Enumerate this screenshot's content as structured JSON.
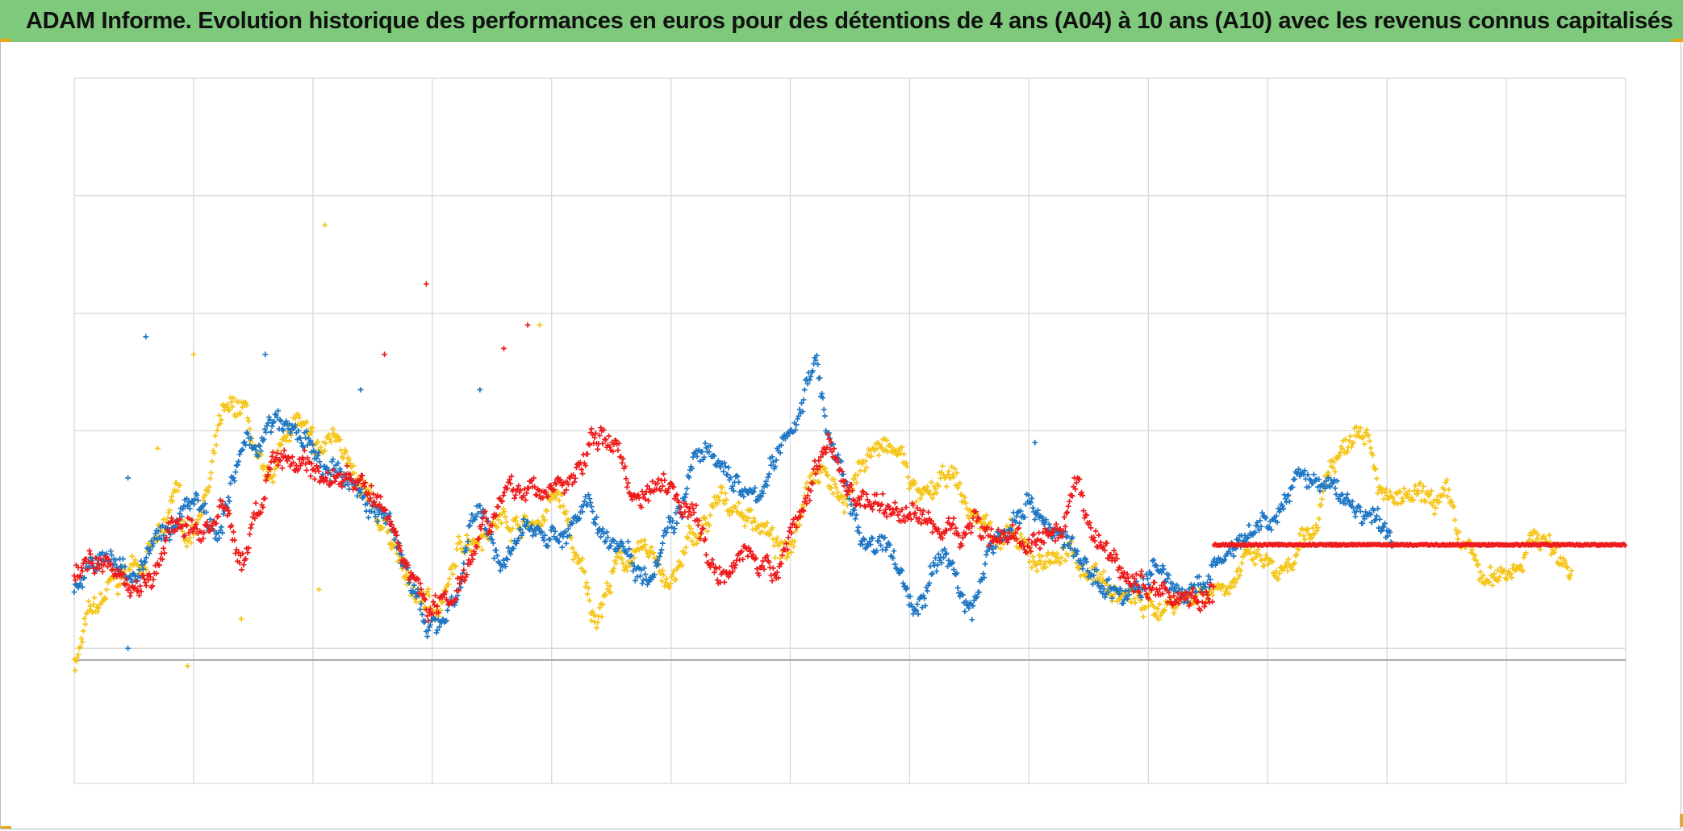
{
  "title": "ADAM Informe. Evolution historique des performances en euros pour des détentions de 4 ans (A04) à 10 ans (A10) avec les revenus connus capitalisés",
  "colors": {
    "title_bg": "#7fc97c",
    "corner_accent": "#e6a817",
    "grid": "#d9d9d9",
    "zero_line": "#a6a6a6",
    "series_blue": "#1f77c4",
    "series_red": "#ee1c1c",
    "series_yellow": "#f5c518"
  },
  "chart_data": {
    "type": "scatter",
    "title": "ADAM Informe. Evolution historique des performances en euros pour des détentions de 4 ans (A04) à 10 ans (A10) avec les revenus connus capitalisés",
    "xlabel": "",
    "ylabel": "",
    "marker": "plus",
    "grid": true,
    "x_range": [
      0,
      13
    ],
    "y_range": [
      -1.15,
      4.85
    ],
    "x_gridlines": [
      0,
      1,
      2,
      3,
      4,
      5,
      6,
      7,
      8,
      9,
      10,
      11,
      12,
      13
    ],
    "y_gridlines": [
      -1.15,
      0.0,
      1.85,
      2.85,
      3.85,
      4.85
    ],
    "baseline": -0.1,
    "series": [
      {
        "name": "blue",
        "color": "#1f77c4",
        "x_end": 11.05,
        "anchors": [
          [
            0.0,
            0.55
          ],
          [
            0.25,
            0.75
          ],
          [
            0.5,
            0.65
          ],
          [
            0.75,
            0.95
          ],
          [
            1.0,
            1.3
          ],
          [
            1.2,
            1.05
          ],
          [
            1.45,
            1.7
          ],
          [
            1.7,
            1.9
          ],
          [
            1.9,
            1.8
          ],
          [
            2.1,
            1.5
          ],
          [
            2.35,
            1.4
          ],
          [
            2.55,
            1.15
          ],
          [
            2.85,
            0.6
          ],
          [
            2.95,
            0.1
          ],
          [
            3.05,
            0.25
          ],
          [
            3.2,
            0.45
          ],
          [
            3.35,
            1.15
          ],
          [
            3.6,
            0.75
          ],
          [
            3.85,
            1.05
          ],
          [
            4.05,
            0.95
          ],
          [
            4.3,
            1.15
          ],
          [
            4.55,
            0.9
          ],
          [
            4.8,
            0.65
          ],
          [
            5.0,
            1.1
          ],
          [
            5.25,
            1.65
          ],
          [
            5.45,
            1.5
          ],
          [
            5.7,
            1.25
          ],
          [
            5.85,
            1.55
          ],
          [
            6.05,
            1.95
          ],
          [
            6.2,
            2.45
          ],
          [
            6.35,
            1.7
          ],
          [
            6.6,
            0.95
          ],
          [
            6.85,
            0.8
          ],
          [
            7.05,
            0.35
          ],
          [
            7.3,
            0.8
          ],
          [
            7.5,
            0.35
          ],
          [
            7.75,
            0.95
          ],
          [
            8.0,
            1.25
          ],
          [
            8.25,
            0.95
          ],
          [
            8.55,
            0.6
          ],
          [
            8.85,
            0.45
          ],
          [
            9.05,
            0.65
          ],
          [
            9.35,
            0.45
          ],
          [
            9.7,
            0.8
          ],
          [
            10.0,
            1.05
          ],
          [
            10.3,
            1.45
          ],
          [
            10.55,
            1.35
          ],
          [
            10.8,
            1.15
          ],
          [
            11.05,
            0.95
          ]
        ]
      },
      {
        "name": "red",
        "color": "#ee1c1c",
        "x_end": 9.55,
        "anchors": [
          [
            0.0,
            0.6
          ],
          [
            0.2,
            0.8
          ],
          [
            0.45,
            0.55
          ],
          [
            0.65,
            0.6
          ],
          [
            0.85,
            1.05
          ],
          [
            1.05,
            1.0
          ],
          [
            1.25,
            1.15
          ],
          [
            1.4,
            0.75
          ],
          [
            1.55,
            1.2
          ],
          [
            1.7,
            1.65
          ],
          [
            1.9,
            1.6
          ],
          [
            2.1,
            1.45
          ],
          [
            2.35,
            1.45
          ],
          [
            2.6,
            1.15
          ],
          [
            2.85,
            0.6
          ],
          [
            3.0,
            0.35
          ],
          [
            3.15,
            0.45
          ],
          [
            3.3,
            0.75
          ],
          [
            3.45,
            1.15
          ],
          [
            3.75,
            1.35
          ],
          [
            3.95,
            1.35
          ],
          [
            4.15,
            1.4
          ],
          [
            4.35,
            1.75
          ],
          [
            4.5,
            1.8
          ],
          [
            4.7,
            1.3
          ],
          [
            4.95,
            1.45
          ],
          [
            5.15,
            1.2
          ],
          [
            5.4,
            0.65
          ],
          [
            5.6,
            0.85
          ],
          [
            5.85,
            0.6
          ],
          [
            6.05,
            1.1
          ],
          [
            6.3,
            1.7
          ],
          [
            6.55,
            1.3
          ],
          [
            6.8,
            1.2
          ],
          [
            7.0,
            1.15
          ],
          [
            7.3,
            1.0
          ],
          [
            7.55,
            1.05
          ],
          [
            7.8,
            0.95
          ],
          [
            8.0,
            0.9
          ],
          [
            8.25,
            0.9
          ],
          [
            8.4,
            1.3
          ],
          [
            8.6,
            0.85
          ],
          [
            8.85,
            0.6
          ],
          [
            9.05,
            0.5
          ],
          [
            9.3,
            0.45
          ],
          [
            9.55,
            0.45
          ]
        ]
      },
      {
        "name": "red-flat",
        "color": "#ee1c1c",
        "x_start": 9.55,
        "x_end": 13.0,
        "flat_value": 0.88
      },
      {
        "name": "yellow",
        "color": "#f5c518",
        "x_end": 12.55,
        "anchors": [
          [
            0.0,
            -0.1
          ],
          [
            0.15,
            0.3
          ],
          [
            0.35,
            0.55
          ],
          [
            0.55,
            0.75
          ],
          [
            0.75,
            0.95
          ],
          [
            0.85,
            1.35
          ],
          [
            0.95,
            0.95
          ],
          [
            1.1,
            1.3
          ],
          [
            1.25,
            1.95
          ],
          [
            1.4,
            2.05
          ],
          [
            1.6,
            1.4
          ],
          [
            1.85,
            1.95
          ],
          [
            2.05,
            1.65
          ],
          [
            2.2,
            1.85
          ],
          [
            2.4,
            1.3
          ],
          [
            2.6,
            1.05
          ],
          [
            2.85,
            0.45
          ],
          [
            3.05,
            0.35
          ],
          [
            3.3,
            0.95
          ],
          [
            3.6,
            1.1
          ],
          [
            3.85,
            1.05
          ],
          [
            4.05,
            1.3
          ],
          [
            4.25,
            0.65
          ],
          [
            4.35,
            0.3
          ],
          [
            4.6,
            0.75
          ],
          [
            4.85,
            0.8
          ],
          [
            5.0,
            0.55
          ],
          [
            5.2,
            0.95
          ],
          [
            5.45,
            1.25
          ],
          [
            5.7,
            1.1
          ],
          [
            5.95,
            0.8
          ],
          [
            6.2,
            1.55
          ],
          [
            6.45,
            1.3
          ],
          [
            6.7,
            1.7
          ],
          [
            6.9,
            1.65
          ],
          [
            7.1,
            1.25
          ],
          [
            7.35,
            1.45
          ],
          [
            7.55,
            1.1
          ],
          [
            7.8,
            0.95
          ],
          [
            8.05,
            0.75
          ],
          [
            8.3,
            0.8
          ],
          [
            8.55,
            0.65
          ],
          [
            8.75,
            0.45
          ],
          [
            9.05,
            0.35
          ],
          [
            9.35,
            0.45
          ],
          [
            9.6,
            0.55
          ],
          [
            9.9,
            0.75
          ],
          [
            10.15,
            0.6
          ],
          [
            10.35,
            0.95
          ],
          [
            10.55,
            1.6
          ],
          [
            10.8,
            1.95
          ],
          [
            11.0,
            1.25
          ],
          [
            11.3,
            1.25
          ],
          [
            11.5,
            1.25
          ],
          [
            11.65,
            0.85
          ],
          [
            11.85,
            0.55
          ],
          [
            12.05,
            0.7
          ],
          [
            12.25,
            0.95
          ],
          [
            12.55,
            0.7
          ]
        ]
      }
    ],
    "outliers": {
      "blue": [
        [
          0.6,
          2.65
        ],
        [
          0.45,
          1.45
        ],
        [
          0.45,
          0.0
        ],
        [
          1.6,
          2.5
        ],
        [
          2.4,
          2.2
        ],
        [
          3.4,
          2.2
        ],
        [
          8.05,
          1.75
        ]
      ],
      "red": [
        [
          2.95,
          3.1
        ],
        [
          3.6,
          2.55
        ],
        [
          3.8,
          2.75
        ],
        [
          2.6,
          2.5
        ]
      ],
      "yellow": [
        [
          2.1,
          3.6
        ],
        [
          1.0,
          2.5
        ],
        [
          3.9,
          2.75
        ],
        [
          0.7,
          1.7
        ],
        [
          0.95,
          -0.15
        ],
        [
          1.4,
          0.25
        ],
        [
          2.05,
          0.5
        ]
      ]
    }
  }
}
